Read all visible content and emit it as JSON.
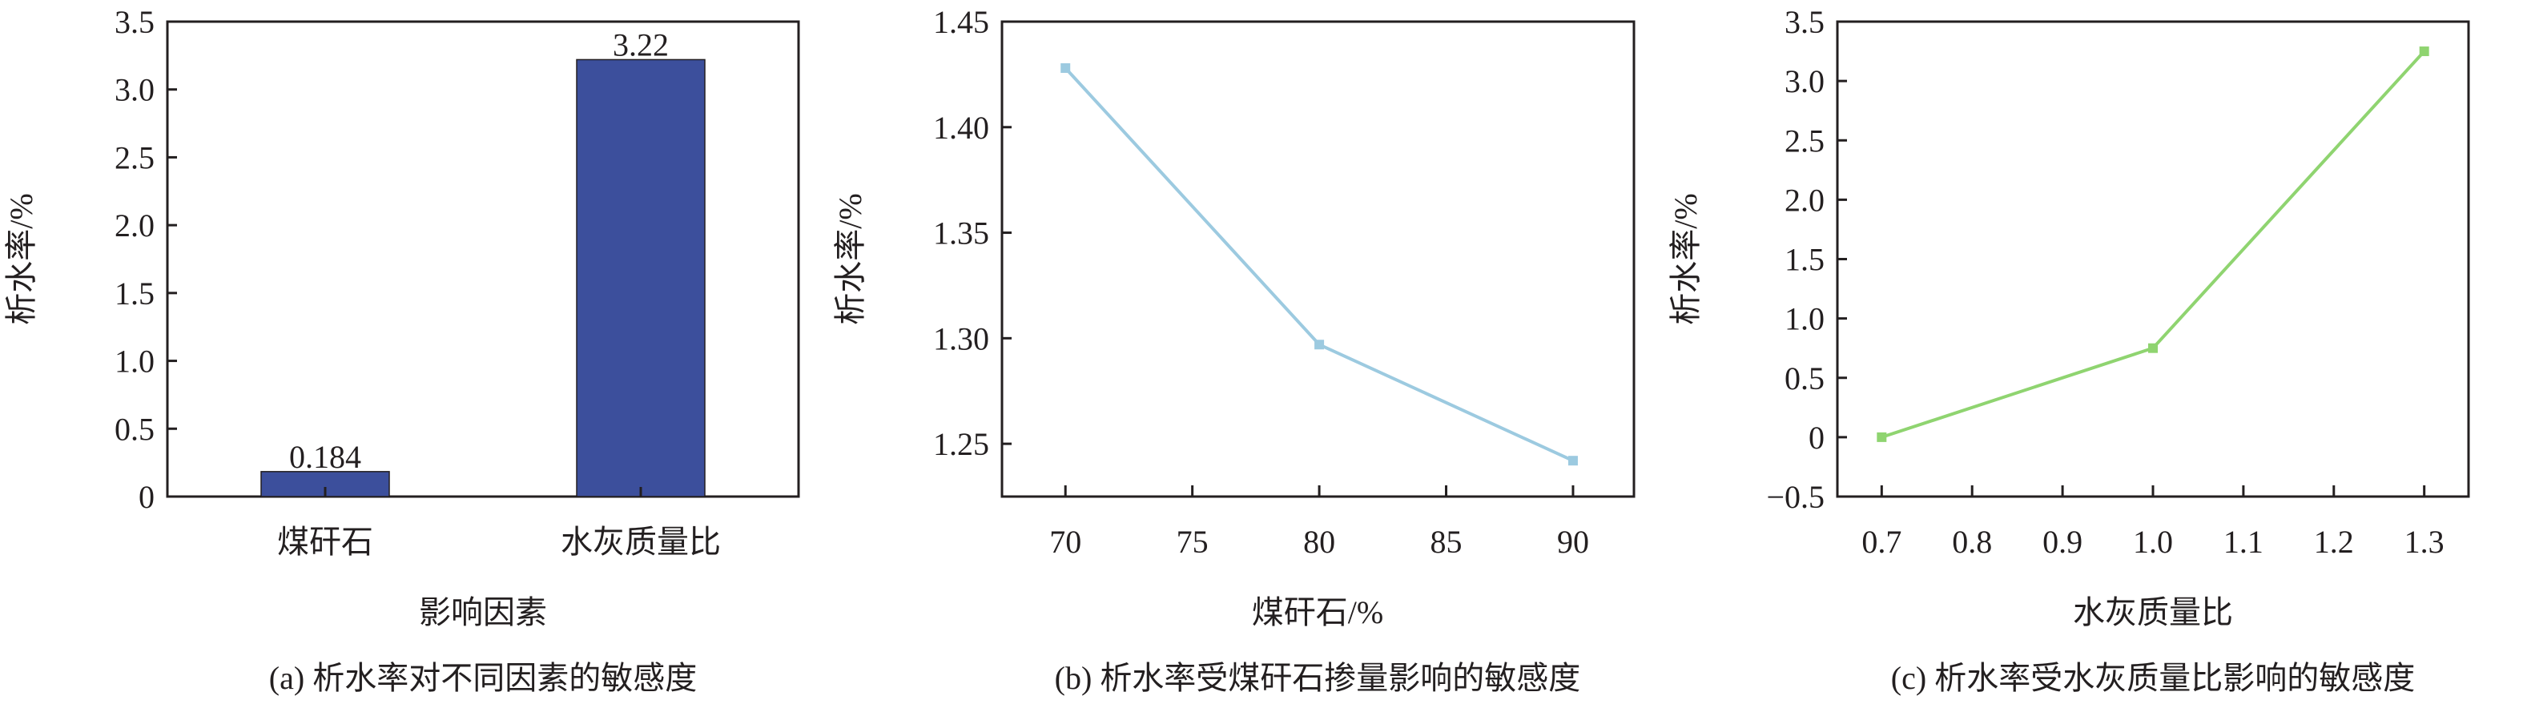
{
  "chart_data": [
    {
      "type": "bar",
      "caption": "(a) 析水率对不同因素的敏感度",
      "xlabel": "影响因素",
      "ylabel": "析水率/%",
      "categories": [
        "煤矸石",
        "水灰质量比"
      ],
      "values": [
        0.184,
        3.22
      ],
      "data_labels": [
        "0.184",
        "3.22"
      ],
      "ylim": [
        0,
        3.5
      ],
      "yticks": [
        "0",
        "0.5",
        "1.0",
        "1.5",
        "2.0",
        "2.5",
        "3.0",
        "3.5"
      ],
      "grid": false,
      "color": "#3c4f9c"
    },
    {
      "type": "line",
      "caption": "(b) 析水率受煤矸石掺量影响的敏感度",
      "xlabel": "煤矸石/%",
      "ylabel": "析水率/%",
      "x": [
        70,
        80,
        90
      ],
      "y": [
        1.428,
        1.297,
        1.242
      ],
      "xlim": [
        67.5,
        92.4
      ],
      "ylim": [
        1.225,
        1.45
      ],
      "xticks": [
        "70",
        "75",
        "80",
        "85",
        "90"
      ],
      "yticks": [
        "1.25",
        "1.30",
        "1.35",
        "1.40",
        "1.45"
      ],
      "grid": false,
      "color": "#9ccae0"
    },
    {
      "type": "line",
      "caption": "(c) 析水率受水灰质量比影响的敏感度",
      "xlabel": "水灰质量比",
      "ylabel": "析水率/%",
      "x": [
        0.7,
        1.0,
        1.3
      ],
      "y": [
        0,
        0.75,
        3.25
      ],
      "xlim": [
        0.651,
        1.349
      ],
      "ylim": [
        -0.5,
        3.5
      ],
      "xticks": [
        "0.7",
        "0.8",
        "0.9",
        "1.0",
        "1.1",
        "1.2",
        "1.3"
      ],
      "yticks": [
        "−0.5",
        "0",
        "0.5",
        "1.0",
        "1.5",
        "2.0",
        "2.5",
        "3.0",
        "3.5"
      ],
      "grid": false,
      "color": "#8fd470"
    }
  ]
}
